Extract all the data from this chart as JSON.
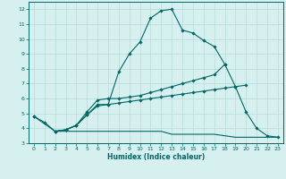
{
  "xlabel": "Humidex (Indice chaleur)",
  "bg_color": "#d6f0f0",
  "grid_color": "#b8dada",
  "line_color": "#006666",
  "xlim": [
    -0.5,
    23.5
  ],
  "ylim": [
    3,
    12.5
  ],
  "xticks": [
    0,
    1,
    2,
    3,
    4,
    5,
    6,
    7,
    8,
    9,
    10,
    11,
    12,
    13,
    14,
    15,
    16,
    17,
    18,
    19,
    20,
    21,
    22,
    23
  ],
  "yticks": [
    3,
    4,
    5,
    6,
    7,
    8,
    9,
    10,
    11,
    12
  ],
  "lines": [
    {
      "x": [
        0,
        1,
        2,
        3,
        4,
        5,
        6,
        7,
        8,
        9,
        10,
        11,
        12,
        13,
        14,
        15,
        16,
        17,
        18
      ],
      "y": [
        4.8,
        4.4,
        3.8,
        3.9,
        4.2,
        4.9,
        5.6,
        5.6,
        7.8,
        9.0,
        9.8,
        11.4,
        11.9,
        12.0,
        10.6,
        10.4,
        9.9,
        9.5,
        8.3
      ],
      "marker": "D",
      "markersize": 1.8
    },
    {
      "x": [
        2,
        3,
        4,
        5,
        6,
        7,
        8,
        9,
        10,
        11,
        12,
        13,
        14,
        15,
        16,
        17,
        18,
        19,
        20,
        21,
        22,
        23
      ],
      "y": [
        3.8,
        3.9,
        4.2,
        5.1,
        5.9,
        6.0,
        6.0,
        6.1,
        6.2,
        6.4,
        6.6,
        6.8,
        7.0,
        7.2,
        7.4,
        7.6,
        8.3,
        6.8,
        5.1,
        4.0,
        3.5,
        3.4
      ],
      "marker": "D",
      "markersize": 1.8
    },
    {
      "x": [
        0,
        2,
        3,
        4,
        5,
        6,
        7,
        8,
        9,
        10,
        11,
        12,
        13,
        14,
        15,
        16,
        17,
        18,
        19,
        20
      ],
      "y": [
        4.8,
        3.8,
        3.9,
        4.2,
        4.9,
        5.5,
        5.6,
        5.7,
        5.8,
        5.9,
        6.0,
        6.1,
        6.2,
        6.3,
        6.4,
        6.5,
        6.6,
        6.7,
        6.8,
        6.9
      ],
      "marker": "D",
      "markersize": 1.8
    },
    {
      "x": [
        2,
        3,
        4,
        5,
        6,
        7,
        8,
        9,
        10,
        11,
        12,
        13,
        14,
        15,
        16,
        17,
        18,
        19,
        20,
        21,
        22,
        23
      ],
      "y": [
        3.8,
        3.8,
        3.8,
        3.8,
        3.8,
        3.8,
        3.8,
        3.8,
        3.8,
        3.8,
        3.8,
        3.6,
        3.6,
        3.6,
        3.6,
        3.6,
        3.5,
        3.4,
        3.4,
        3.4,
        3.4,
        3.4
      ],
      "marker": null,
      "markersize": 0
    }
  ]
}
